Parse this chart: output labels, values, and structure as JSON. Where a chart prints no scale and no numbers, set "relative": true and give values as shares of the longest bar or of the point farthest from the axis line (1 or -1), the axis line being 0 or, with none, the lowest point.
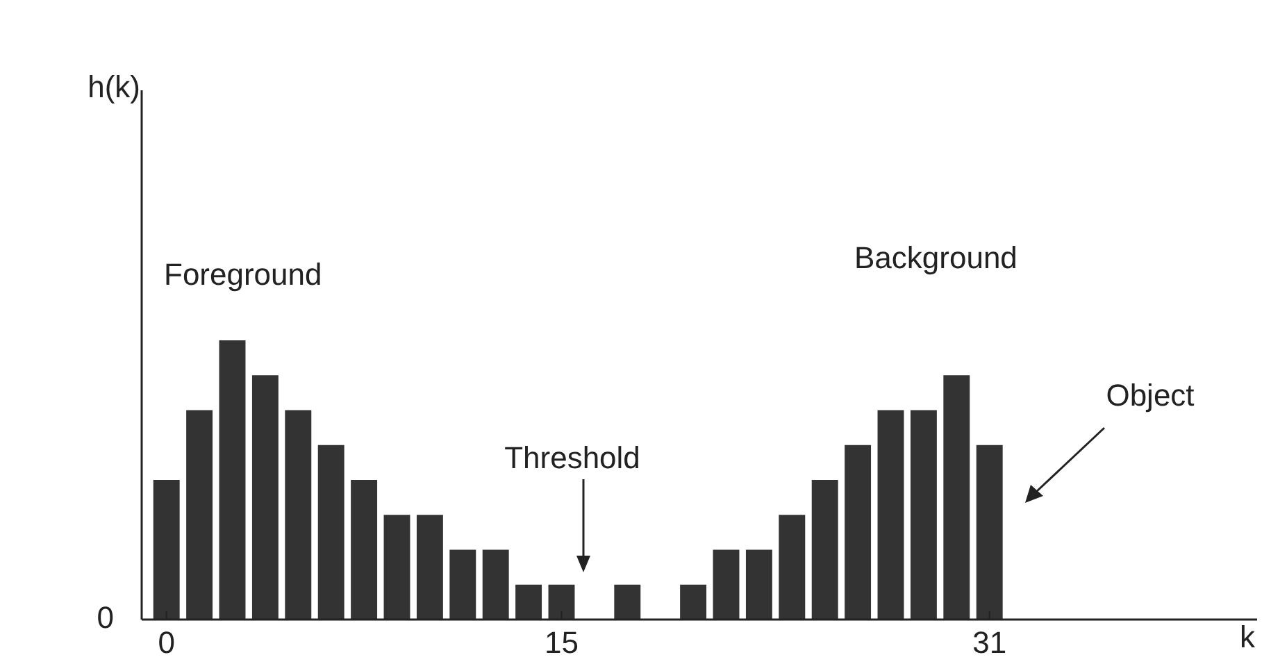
{
  "chart_data": {
    "type": "bar",
    "relative": true,
    "color": "#333333",
    "categories": [
      "0",
      null,
      null,
      null,
      null,
      null,
      null,
      null,
      null,
      null,
      null,
      null,
      "15",
      null,
      null,
      null,
      null,
      null,
      null,
      null,
      null,
      null,
      null,
      null,
      null,
      "31"
    ],
    "values": [
      0.5,
      0.75,
      1,
      0.875,
      0.75,
      0.625,
      0.5,
      0.375,
      0.375,
      0.25,
      0.25,
      0.125,
      0.125,
      null,
      0.125,
      null,
      0.125,
      0.25,
      0.25,
      0.375,
      0.5,
      0.625,
      0.75,
      0.75,
      0.875,
      0.625
    ],
    "annotations": [
      "0",
      "Foreground",
      "Background",
      "Threshold",
      "Object",
      "k",
      "h(k)"
    ]
  }
}
